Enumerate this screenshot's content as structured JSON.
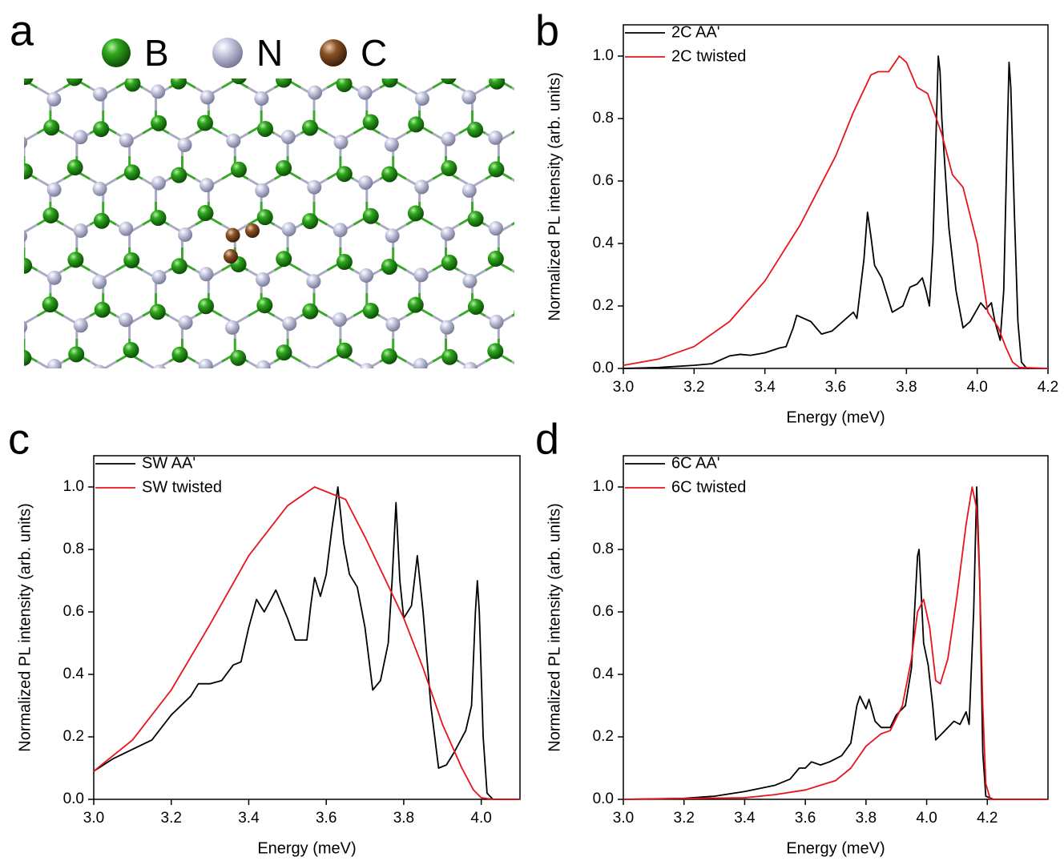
{
  "panel_labels": [
    "a",
    "b",
    "c",
    "d"
  ],
  "structure_legend": [
    "B",
    "N",
    "C"
  ],
  "chart_data": [
    {
      "type": "line",
      "xlabel": "Energy (meV)",
      "ylabel": "Normalized PL intensity (arb. units)",
      "xlim": [
        3.0,
        4.2
      ],
      "ylim": [
        0,
        1.1
      ],
      "xticks": [
        {
          "value": 3.0,
          "label": "3.0"
        },
        {
          "value": 3.2,
          "label": "3.2"
        },
        {
          "value": 3.4,
          "label": "3.4"
        },
        {
          "value": 3.6,
          "label": "3.6"
        },
        {
          "value": 3.8,
          "label": "3.8"
        },
        {
          "value": 4.0,
          "label": "4.0"
        },
        {
          "value": 4.2,
          "label": "4.2"
        }
      ],
      "yticks": [
        {
          "value": 0,
          "label": "0.0"
        },
        {
          "value": 0.2,
          "label": "0.2"
        },
        {
          "value": 0.4,
          "label": "0.4"
        },
        {
          "value": 0.6,
          "label": "0.6"
        },
        {
          "value": 0.8,
          "label": "0.8"
        },
        {
          "value": 1.0,
          "label": "1.0"
        }
      ],
      "legend": "upper left",
      "series": [
        {
          "name": "2C AA'",
          "color": "#000000",
          "x": [
            3.0,
            3.1,
            3.2,
            3.25,
            3.28,
            3.3,
            3.33,
            3.36,
            3.4,
            3.44,
            3.46,
            3.48,
            3.49,
            3.51,
            3.53,
            3.56,
            3.59,
            3.62,
            3.65,
            3.66,
            3.68,
            3.69,
            3.7,
            3.71,
            3.73,
            3.76,
            3.79,
            3.81,
            3.83,
            3.845,
            3.855,
            3.865,
            3.875,
            3.885,
            3.89,
            3.895,
            3.9,
            3.92,
            3.94,
            3.96,
            3.98,
            4.0,
            4.01,
            4.025,
            4.04,
            4.05,
            4.065,
            4.075,
            4.085,
            4.09,
            4.095,
            4.105,
            4.115,
            4.125,
            4.14,
            4.2
          ],
          "values": [
            0,
            0.003,
            0.01,
            0.015,
            0.03,
            0.04,
            0.045,
            0.042,
            0.05,
            0.065,
            0.07,
            0.13,
            0.17,
            0.16,
            0.15,
            0.11,
            0.12,
            0.15,
            0.18,
            0.16,
            0.35,
            0.5,
            0.42,
            0.33,
            0.29,
            0.18,
            0.2,
            0.26,
            0.27,
            0.29,
            0.25,
            0.2,
            0.4,
            0.8,
            1.0,
            0.95,
            0.8,
            0.45,
            0.25,
            0.13,
            0.15,
            0.19,
            0.21,
            0.19,
            0.21,
            0.15,
            0.09,
            0.25,
            0.75,
            0.98,
            0.9,
            0.5,
            0.15,
            0.02,
            0,
            0
          ]
        },
        {
          "name": "2C twisted",
          "color": "#e8141b",
          "x": [
            3.0,
            3.1,
            3.2,
            3.3,
            3.4,
            3.5,
            3.6,
            3.65,
            3.7,
            3.72,
            3.75,
            3.78,
            3.8,
            3.83,
            3.86,
            3.9,
            3.93,
            3.96,
            4.0,
            4.03,
            4.06,
            4.08,
            4.1,
            4.12,
            4.2
          ],
          "values": [
            0.01,
            0.03,
            0.07,
            0.15,
            0.28,
            0.46,
            0.68,
            0.82,
            0.94,
            0.95,
            0.95,
            1.0,
            0.98,
            0.9,
            0.88,
            0.75,
            0.62,
            0.58,
            0.4,
            0.18,
            0.13,
            0.07,
            0.02,
            0.003,
            0
          ]
        }
      ]
    },
    {
      "type": "line",
      "xlabel": "Energy (meV)",
      "ylabel": "Normalized PL intensity (arb. units)",
      "xlim": [
        3.0,
        4.1
      ],
      "ylim": [
        0,
        1.1
      ],
      "xticks": [
        {
          "value": 3.0,
          "label": "3.0"
        },
        {
          "value": 3.2,
          "label": "3.2"
        },
        {
          "value": 3.4,
          "label": "3.4"
        },
        {
          "value": 3.6,
          "label": "3.6"
        },
        {
          "value": 3.8,
          "label": "3.8"
        },
        {
          "value": 4.0,
          "label": "4.0"
        }
      ],
      "yticks": [
        {
          "value": 0,
          "label": "0.0"
        },
        {
          "value": 0.2,
          "label": "0.2"
        },
        {
          "value": 0.4,
          "label": "0.4"
        },
        {
          "value": 0.6,
          "label": "0.6"
        },
        {
          "value": 0.8,
          "label": "0.8"
        },
        {
          "value": 1.0,
          "label": "1.0"
        }
      ],
      "legend": "upper left",
      "series": [
        {
          "name": "SW AA'",
          "color": "#000000",
          "x": [
            3.0,
            3.05,
            3.1,
            3.15,
            3.2,
            3.25,
            3.27,
            3.3,
            3.33,
            3.36,
            3.38,
            3.4,
            3.42,
            3.44,
            3.47,
            3.5,
            3.52,
            3.55,
            3.56,
            3.57,
            3.585,
            3.6,
            3.615,
            3.63,
            3.645,
            3.66,
            3.68,
            3.7,
            3.72,
            3.74,
            3.76,
            3.77,
            3.78,
            3.79,
            3.8,
            3.82,
            3.835,
            3.85,
            3.87,
            3.89,
            3.91,
            3.93,
            3.96,
            3.975,
            3.985,
            3.99,
            3.995,
            4.005,
            4.015,
            4.03,
            4.1
          ],
          "values": [
            0.09,
            0.13,
            0.16,
            0.19,
            0.27,
            0.33,
            0.37,
            0.37,
            0.38,
            0.43,
            0.44,
            0.55,
            0.64,
            0.6,
            0.67,
            0.58,
            0.51,
            0.51,
            0.62,
            0.71,
            0.65,
            0.72,
            0.87,
            1.0,
            0.82,
            0.72,
            0.68,
            0.55,
            0.35,
            0.38,
            0.5,
            0.7,
            0.95,
            0.7,
            0.58,
            0.62,
            0.78,
            0.6,
            0.3,
            0.1,
            0.11,
            0.15,
            0.22,
            0.3,
            0.6,
            0.7,
            0.6,
            0.2,
            0.02,
            0,
            0
          ]
        },
        {
          "name": "SW twisted",
          "color": "#e8141b",
          "x": [
            3.0,
            3.1,
            3.2,
            3.3,
            3.4,
            3.5,
            3.57,
            3.65,
            3.7,
            3.8,
            3.85,
            3.9,
            3.95,
            3.98,
            4.0,
            4.03,
            4.1
          ],
          "values": [
            0.09,
            0.19,
            0.35,
            0.56,
            0.78,
            0.94,
            1.0,
            0.96,
            0.84,
            0.58,
            0.42,
            0.24,
            0.1,
            0.03,
            0.005,
            0,
            0
          ]
        }
      ]
    },
    {
      "type": "line",
      "xlabel": "Energy (meV)",
      "ylabel": "Normalized PL intensity (arb. units)",
      "xlim": [
        3.0,
        4.4
      ],
      "ylim": [
        0,
        1.1
      ],
      "xticks": [
        {
          "value": 3.0,
          "label": "3.0"
        },
        {
          "value": 3.2,
          "label": "3.2"
        },
        {
          "value": 3.4,
          "label": "3.4"
        },
        {
          "value": 3.6,
          "label": "3.6"
        },
        {
          "value": 3.8,
          "label": "3.8"
        },
        {
          "value": 4.0,
          "label": "4.0"
        },
        {
          "value": 4.2,
          "label": "4.2"
        }
      ],
      "yticks": [
        {
          "value": 0,
          "label": "0.0"
        },
        {
          "value": 0.2,
          "label": "0.2"
        },
        {
          "value": 0.4,
          "label": "0.4"
        },
        {
          "value": 0.6,
          "label": "0.6"
        },
        {
          "value": 0.8,
          "label": "0.8"
        },
        {
          "value": 1.0,
          "label": "1.0"
        }
      ],
      "legend": "upper left",
      "series": [
        {
          "name": "6C AA'",
          "color": "#000000",
          "x": [
            3.0,
            3.2,
            3.3,
            3.4,
            3.5,
            3.55,
            3.58,
            3.6,
            3.62,
            3.65,
            3.68,
            3.72,
            3.75,
            3.77,
            3.78,
            3.8,
            3.81,
            3.83,
            3.85,
            3.88,
            3.9,
            3.93,
            3.95,
            3.97,
            3.975,
            3.99,
            4.005,
            4.02,
            4.03,
            4.06,
            4.09,
            4.11,
            4.13,
            4.14,
            4.155,
            4.165,
            4.175,
            4.185,
            4.195,
            4.22,
            4.4
          ],
          "values": [
            0,
            0.003,
            0.01,
            0.025,
            0.045,
            0.065,
            0.1,
            0.1,
            0.12,
            0.11,
            0.12,
            0.14,
            0.18,
            0.3,
            0.33,
            0.29,
            0.32,
            0.25,
            0.23,
            0.23,
            0.27,
            0.3,
            0.42,
            0.78,
            0.8,
            0.5,
            0.43,
            0.3,
            0.19,
            0.22,
            0.25,
            0.24,
            0.28,
            0.24,
            0.6,
            1.0,
            0.7,
            0.15,
            0.01,
            0,
            0
          ]
        },
        {
          "name": "6C twisted",
          "color": "#e8141b",
          "x": [
            3.0,
            3.4,
            3.5,
            3.6,
            3.7,
            3.75,
            3.8,
            3.85,
            3.88,
            3.92,
            3.95,
            3.97,
            3.99,
            4.01,
            4.03,
            4.045,
            4.07,
            4.1,
            4.13,
            4.15,
            4.165,
            4.175,
            4.185,
            4.195,
            4.21,
            4.4
          ],
          "values": [
            0,
            0.005,
            0.015,
            0.03,
            0.06,
            0.1,
            0.17,
            0.21,
            0.22,
            0.3,
            0.45,
            0.6,
            0.64,
            0.55,
            0.38,
            0.37,
            0.45,
            0.65,
            0.88,
            1.0,
            0.93,
            0.7,
            0.3,
            0.05,
            0,
            0
          ]
        }
      ]
    }
  ]
}
